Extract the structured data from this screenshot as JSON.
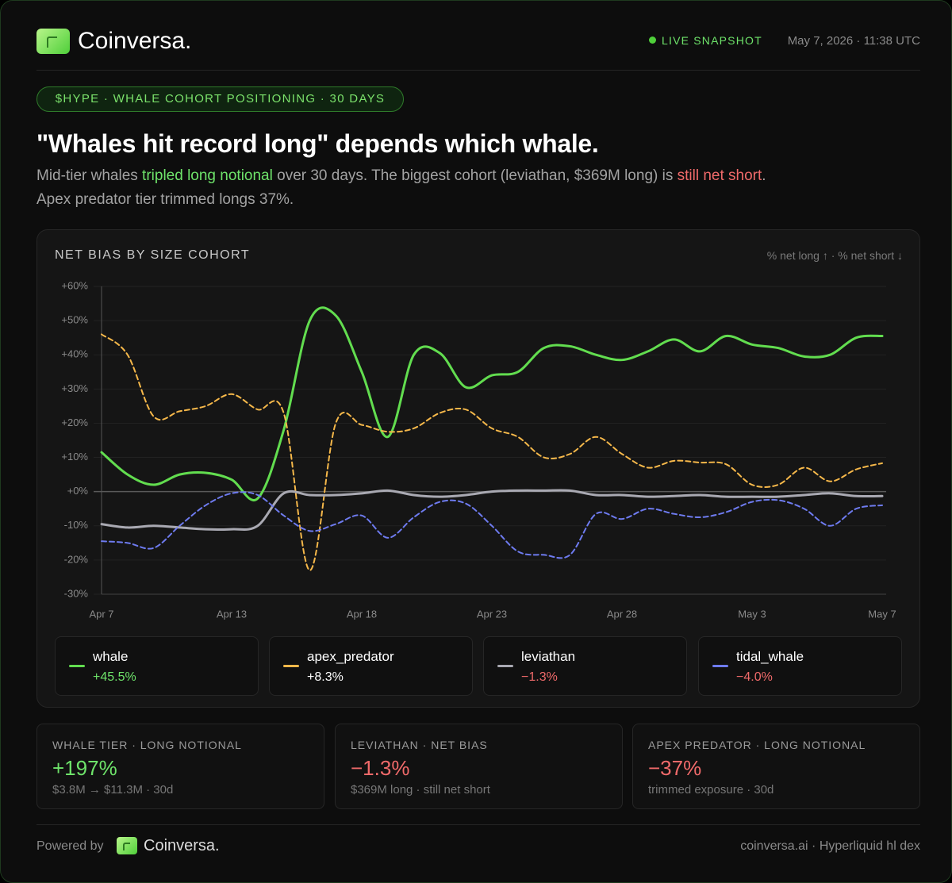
{
  "header": {
    "brand": "Coinversa.",
    "status": "LIVE SNAPSHOT",
    "timestamp": "May 7, 2026 · 11:38 UTC"
  },
  "tag": "$HYPE · WHALE COHORT POSITIONING · 30 DAYS",
  "headline": "\"Whales hit record long\" depends which whale.",
  "summary": [
    "Mid-tier whales ",
    "tripled long notional",
    " over 30 days. The biggest cohort (leviathan, $369M long) is ",
    "still net short",
    ".",
    "Apex predator tier trimmed longs 37%."
  ],
  "chart_data": {
    "type": "line",
    "title": "NET BIAS BY SIZE COHORT",
    "axis_note": "% net long ↑ · % net short ↓",
    "categories": [
      "Apr 7",
      null,
      null,
      null,
      null,
      "Apr 13",
      null,
      null,
      null,
      null,
      "Apr 18",
      null,
      null,
      null,
      null,
      "Apr 23",
      null,
      null,
      null,
      null,
      "Apr 28",
      null,
      null,
      null,
      null,
      "May 3",
      null,
      null,
      null,
      null,
      "May 7"
    ],
    "ylim": [
      -30,
      60
    ],
    "yticks": [
      {
        "value": -30,
        "label": "-30%"
      },
      {
        "value": -20,
        "label": "-20%"
      },
      {
        "value": -10,
        "label": "-10%"
      },
      {
        "value": 0,
        "label": "+0%"
      },
      {
        "value": 10,
        "label": "+10%"
      },
      {
        "value": 20,
        "label": "+20%"
      },
      {
        "value": 30,
        "label": "+30%"
      },
      {
        "value": 40,
        "label": "+40%"
      },
      {
        "value": 50,
        "label": "+50%"
      },
      {
        "value": 60,
        "label": "+60%"
      }
    ],
    "grid": true,
    "series": [
      {
        "name": "whale",
        "color": "#62dd4f",
        "dashed": false,
        "values": [
          11.5,
          5,
          2,
          5,
          5.5,
          3.5,
          -2,
          18,
          50,
          51.5,
          35,
          16,
          40,
          40.5,
          30.5,
          34,
          35,
          42,
          42.5,
          40,
          38.5,
          41,
          44.5,
          41,
          45.5,
          43,
          42,
          39.5,
          40,
          45,
          45.5
        ],
        "value_labels": [
          null,
          null,
          null,
          null,
          null,
          null,
          null,
          null,
          null,
          null,
          null,
          null,
          null,
          null,
          null,
          null,
          null,
          null,
          null,
          null,
          null,
          null,
          null,
          null,
          null,
          null,
          null,
          null,
          null,
          null,
          "+45.5%"
        ]
      },
      {
        "name": "apex_predator",
        "color": "#f6b84a",
        "dashed": true,
        "values": [
          46,
          40,
          22,
          23.5,
          25,
          28.5,
          24,
          23,
          -23,
          20,
          19.5,
          17.5,
          18.5,
          23,
          24,
          18.5,
          16,
          10,
          11,
          16,
          11,
          7,
          9,
          8.5,
          8,
          2,
          2,
          7,
          3,
          6.5,
          8.3
        ],
        "value_labels": [
          null,
          null,
          null,
          null,
          null,
          null,
          null,
          null,
          null,
          null,
          null,
          null,
          null,
          null,
          null,
          null,
          null,
          null,
          null,
          null,
          null,
          null,
          null,
          null,
          null,
          null,
          null,
          null,
          null,
          null,
          "+8.3%"
        ]
      },
      {
        "name": "leviathan",
        "color": "#a9a9b2",
        "dashed": false,
        "values": [
          -9.5,
          -10.5,
          -10,
          -10.5,
          -11,
          -11,
          -10,
          -0.5,
          -1,
          -1,
          -0.5,
          0.3,
          -1,
          -1.5,
          -1,
          0,
          0.3,
          0.3,
          0.3,
          -1,
          -1,
          -1.5,
          -1.3,
          -1,
          -1.5,
          -1.5,
          -1.5,
          -1,
          -0.5,
          -1.3,
          -1.3
        ],
        "value_labels": [
          null,
          null,
          null,
          null,
          null,
          null,
          null,
          null,
          null,
          null,
          null,
          null,
          null,
          null,
          null,
          null,
          null,
          null,
          null,
          null,
          null,
          null,
          null,
          null,
          null,
          null,
          null,
          null,
          null,
          null,
          "−1.3%"
        ]
      },
      {
        "name": "tidal_whale",
        "color": "#6e7bf0",
        "dashed": true,
        "values": [
          -14.5,
          -15,
          -16.5,
          -10,
          -4,
          -0.5,
          -1,
          -7,
          -11.5,
          -9.5,
          -7,
          -13.5,
          -7.5,
          -3,
          -3.5,
          -10,
          -17.5,
          -18.5,
          -18.5,
          -6.5,
          -8,
          -5,
          -6.5,
          -7.5,
          -6,
          -3,
          -2.5,
          -5,
          -10,
          -5,
          -4
        ],
        "value_labels": [
          null,
          null,
          null,
          null,
          null,
          null,
          null,
          null,
          null,
          null,
          null,
          null,
          null,
          null,
          null,
          null,
          null,
          null,
          null,
          null,
          null,
          null,
          null,
          null,
          null,
          null,
          null,
          null,
          null,
          null,
          "−4.0%"
        ]
      }
    ]
  },
  "stats": [
    {
      "label": "WHALE TIER · LONG NOTIONAL",
      "value": "+197%",
      "note": "$3.8M → $11.3M · 30d"
    },
    {
      "label": "LEVIATHAN · NET BIAS",
      "value": "−1.3%",
      "note": "$369M long · still net short"
    },
    {
      "label": "APEX PREDATOR · LONG NOTIONAL",
      "value": "−37%",
      "note": "trimmed exposure · 30d"
    }
  ],
  "footer": {
    "powered_by": "Powered by",
    "brand": "Coinversa.",
    "source": "coinversa.ai · Hyperliquid hl dex"
  }
}
